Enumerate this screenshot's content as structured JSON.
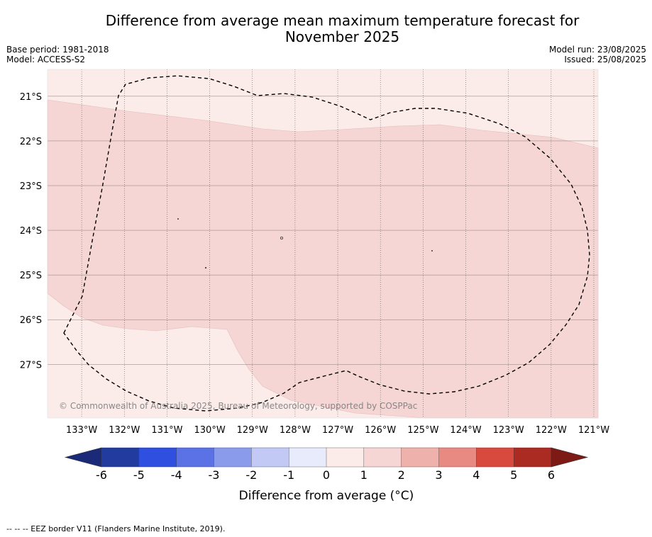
{
  "title": {
    "line1": "Difference from average mean maximum temperature forecast for",
    "line2": "November 2025"
  },
  "meta": {
    "base_period": "Base period: 1981-2018",
    "model": "Model: ACCESS-S2",
    "model_run": "Model run: 23/08/2025",
    "issued": "Issued: 25/08/2025"
  },
  "map": {
    "lon_labels": [
      "133°W",
      "132°W",
      "131°W",
      "130°W",
      "129°W",
      "128°W",
      "127°W",
      "126°W",
      "125°W",
      "124°W",
      "123°W",
      "122°W",
      "121°W"
    ],
    "lat_labels": [
      "21°S",
      "22°S",
      "23°S",
      "24°S",
      "25°S",
      "26°S",
      "27°S"
    ],
    "lon_range": [
      -133.8,
      -120.9
    ],
    "lat_range": [
      -28.2,
      -20.4
    ],
    "copyright": "© Commonwealth of Australia 2025, Bureau of Meteorology, supported by COSPPac",
    "colors": {
      "class_0_1": "#fbebe9",
      "class_1_2": "#f5d6d4",
      "eez_border": "#000000"
    }
  },
  "colorbar": {
    "ticks": [
      "-6",
      "-5",
      "-4",
      "-3",
      "-2",
      "-1",
      "0",
      "1",
      "2",
      "3",
      "4",
      "5",
      "6"
    ],
    "colors": [
      "#213c9e",
      "#2e4fe0",
      "#5a72e6",
      "#8a9bec",
      "#c2c9f5",
      "#e8ebfb",
      "#fcece9",
      "#f5d6d4",
      "#eeb1ab",
      "#e88a82",
      "#d94a3e",
      "#ab2a22"
    ],
    "under_color": "#1a2a78",
    "over_color": "#7d1a14",
    "label": "Difference from average (°C)"
  },
  "footer": {
    "legend": "-- -- -- EEZ border V11 (Flanders Marine Institute, 2019)."
  }
}
